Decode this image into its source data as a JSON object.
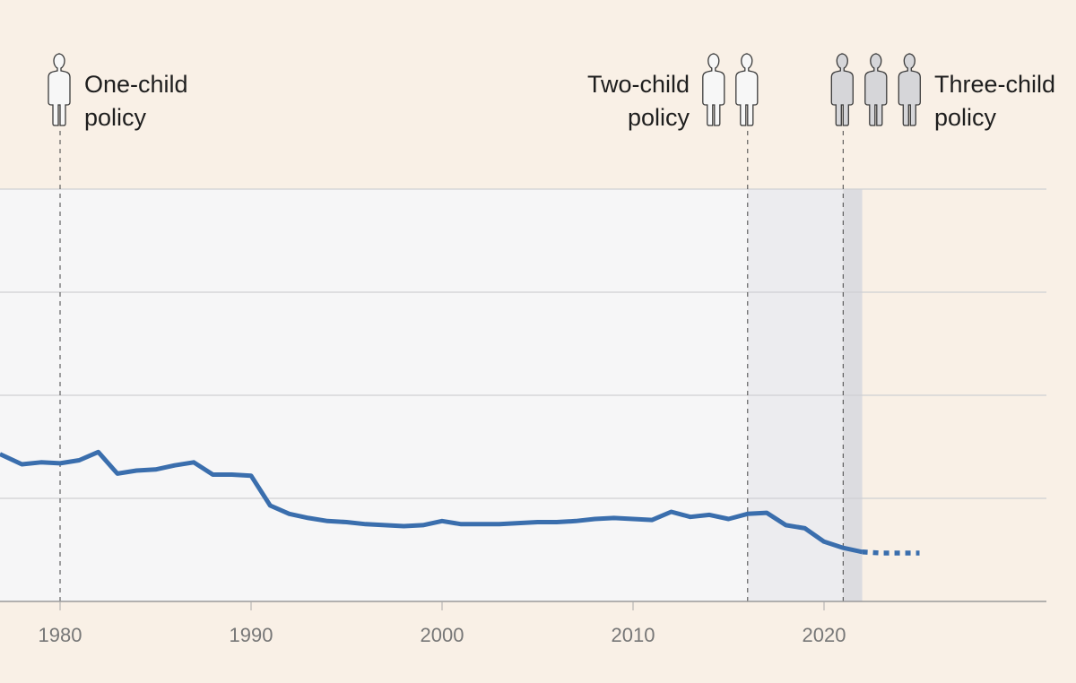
{
  "chart_data": {
    "type": "line",
    "title": "",
    "xlabel": "",
    "ylabel": "",
    "xlim": [
      1976.85,
      2030
    ],
    "ylim": [
      0,
      4
    ],
    "y_units_note": "relative units (one per gridline); y-axis labels not visible",
    "grid": true,
    "x_ticks": [
      "1980",
      "1990",
      "2000",
      "2010",
      "2020"
    ],
    "series": [
      {
        "name": "observed",
        "style": "solid",
        "color": "#3a6ead",
        "x": [
          1976.85,
          1978,
          1979,
          1980,
          1981,
          1982,
          1983,
          1984,
          1985,
          1986,
          1987,
          1988,
          1989,
          1990,
          1991,
          1992,
          1993,
          1994,
          1995,
          1996,
          1997,
          1998,
          1999,
          2000,
          2001,
          2002,
          2003,
          2004,
          2005,
          2006,
          2007,
          2008,
          2009,
          2010,
          2011,
          2012,
          2013,
          2014,
          2015,
          2016,
          2017,
          2018,
          2019,
          2020,
          2021,
          2022
        ],
        "values": [
          1.43,
          1.33,
          1.35,
          1.34,
          1.37,
          1.45,
          1.24,
          1.27,
          1.28,
          1.32,
          1.35,
          1.23,
          1.23,
          1.22,
          0.93,
          0.85,
          0.81,
          0.78,
          0.77,
          0.75,
          0.74,
          0.73,
          0.74,
          0.78,
          0.75,
          0.75,
          0.75,
          0.76,
          0.77,
          0.77,
          0.78,
          0.8,
          0.81,
          0.8,
          0.79,
          0.87,
          0.82,
          0.84,
          0.8,
          0.85,
          0.86,
          0.74,
          0.71,
          0.58,
          0.52,
          0.48
        ]
      },
      {
        "name": "projection",
        "style": "dotted",
        "color": "#3a6ead",
        "x": [
          2022,
          2023,
          2024,
          2025
        ],
        "values": [
          0.48,
          0.47,
          0.47,
          0.47
        ]
      }
    ],
    "shaded_periods": [
      {
        "from": 1976.85,
        "to": 2016,
        "color": "#f6f6f7"
      },
      {
        "from": 2016,
        "to": 2021,
        "color": "#ececef"
      },
      {
        "from": 2021,
        "to": 2022,
        "color": "#dcdce0"
      }
    ],
    "annotations": [
      {
        "year": 1980,
        "line1": "One-child",
        "line2": "policy",
        "figures": 1,
        "figure_color": "#f7f7f7"
      },
      {
        "year": 2016,
        "line1": "Two-child",
        "line2": "policy",
        "figures": 2,
        "figure_color": "#f7f7f7"
      },
      {
        "year": 2021,
        "line1": "Three-child",
        "line2": "policy",
        "figures": 3,
        "figure_color": "#d6d6d9"
      }
    ]
  }
}
